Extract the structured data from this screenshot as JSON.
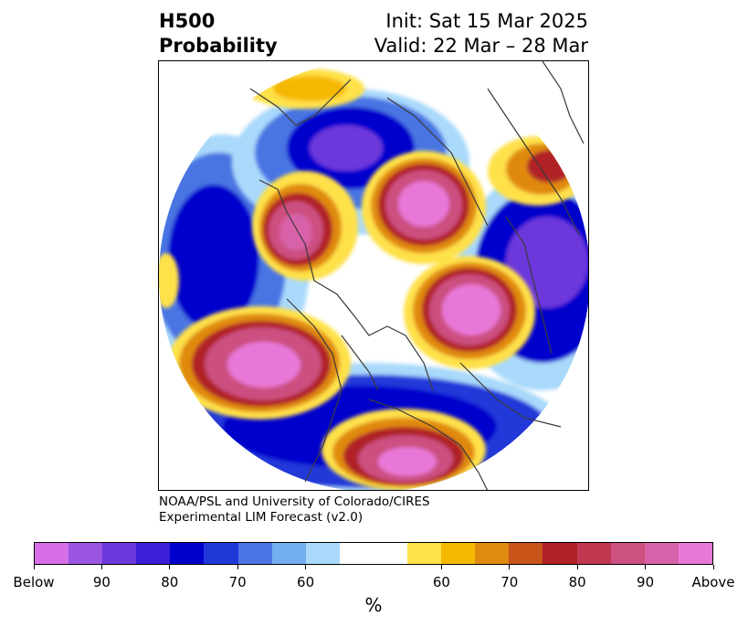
{
  "title": {
    "left_line1": "H500",
    "left_line2": "Probability",
    "right_line1": "Init: Sat 15 Mar 2025",
    "right_line2": "Valid: 22 Mar – 28 Mar"
  },
  "credit": {
    "line1": "NOAA/PSL and University of Colorado/CIRES",
    "line2": "Experimental LIM Forecast (v2.0)"
  },
  "colorbar": {
    "unit_label": "%",
    "colors": [
      "#d66fe6",
      "#9b55e3",
      "#6c38dc",
      "#3a1fd6",
      "#0000cc",
      "#2138d9",
      "#4a74e3",
      "#72aef0",
      "#a9d9fb",
      "#ffffff",
      "#ffe14a",
      "#f5b800",
      "#e08a10",
      "#c8541a",
      "#b02025",
      "#c03850",
      "#cc5080",
      "#d862aa",
      "#e878d8"
    ],
    "tick_labels": [
      "Below",
      "90",
      "80",
      "70",
      "60",
      "60",
      "70",
      "80",
      "90",
      "Above"
    ]
  }
}
